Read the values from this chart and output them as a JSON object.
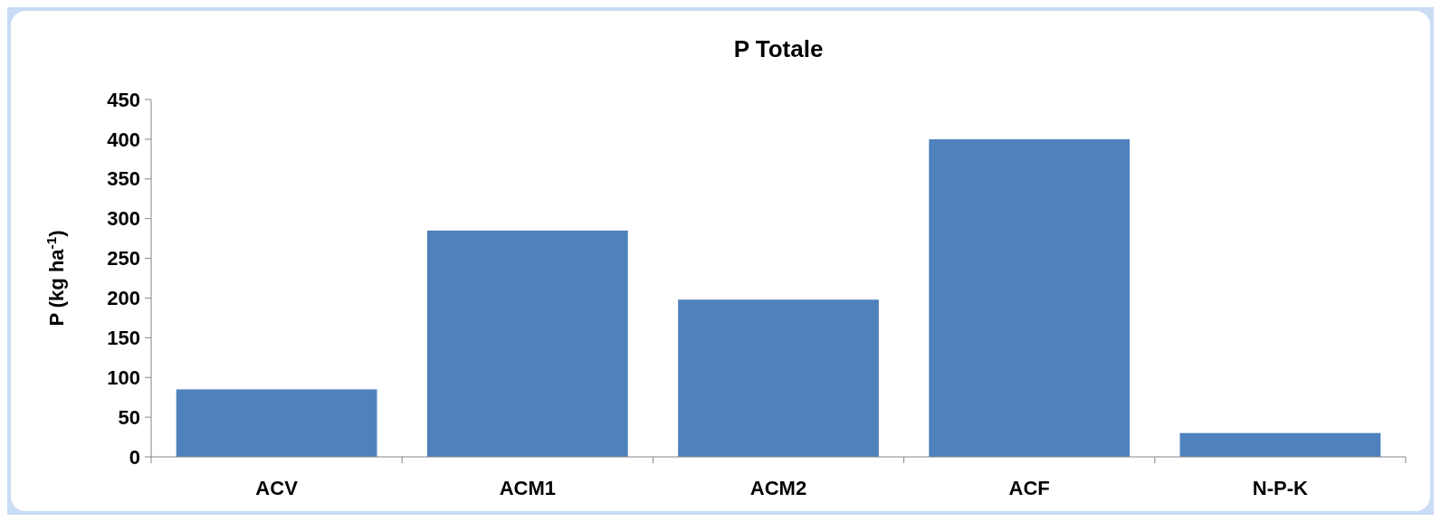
{
  "chart_data": {
    "type": "bar",
    "title": "P Totale",
    "ylabel": "P (kg ha$^{-1}$)",
    "categories": [
      "ACV",
      "ACM1",
      "ACM2",
      "ACF",
      "N-P-K"
    ],
    "values": [
      85,
      285,
      198,
      400,
      30
    ],
    "color": "#4f81bd",
    "ylim": [
      0,
      450
    ],
    "yticks": [
      0,
      50,
      100,
      150,
      200,
      250,
      300,
      350,
      400,
      450
    ]
  }
}
